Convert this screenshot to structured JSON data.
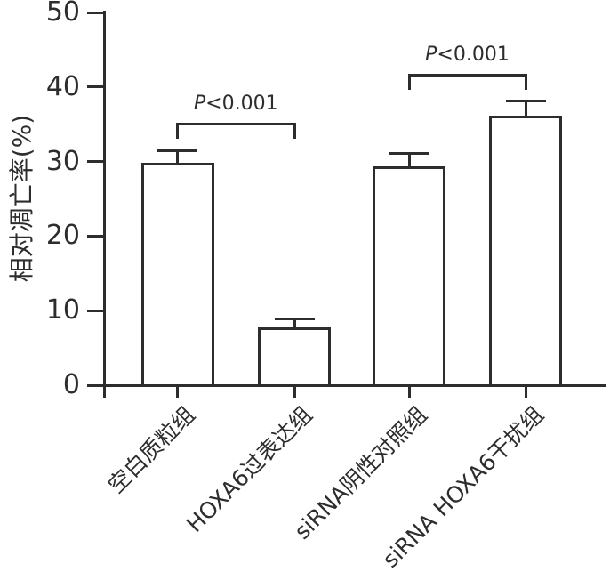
{
  "chart_data": {
    "type": "bar",
    "categories": [
      "空白质粒组",
      "HOXA6过表达组",
      "siRNA阴性对照组",
      "siRNA HOXA6干扰组"
    ],
    "values": [
      29.8,
      7.7,
      29.3,
      36.1
    ],
    "errors": [
      1.6,
      1.2,
      1.8,
      2.0
    ],
    "title": "",
    "xlabel": "",
    "ylabel": "相对凋亡率(%)",
    "ylim": [
      0,
      50
    ],
    "y_ticks": [
      "0",
      "10",
      "20",
      "30",
      "40",
      "50"
    ],
    "grid": false,
    "legend": null,
    "bar_fill": "#ffffff",
    "ink_color": "#2d2d2d",
    "annotations": [
      {
        "type": "significance-bracket",
        "from_category_index": 0,
        "to_category_index": 1,
        "label": "P<0.001",
        "bracket_y_value": 35.2
      },
      {
        "type": "significance-bracket",
        "from_category_index": 2,
        "to_category_index": 3,
        "label": "P<0.001",
        "bracket_y_value": 41.8
      }
    ]
  }
}
